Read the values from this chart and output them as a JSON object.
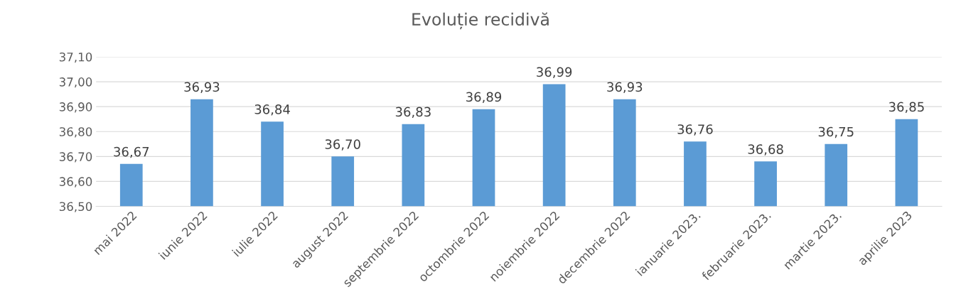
{
  "chart_data": {
    "type": "bar",
    "title": "Evoluție recidivă",
    "categories": [
      "mai 2022",
      "iunie 2022",
      "iulie 2022",
      "august 2022",
      "septembrie 2022",
      "octombrie 2022",
      "noiembrie 2022",
      "decembrie 2022",
      "ianuarie 2023.",
      "februarie 2023.",
      "martie 2023.",
      "aprilie 2023"
    ],
    "values": [
      36.67,
      36.93,
      36.84,
      36.7,
      36.83,
      36.89,
      36.99,
      36.93,
      36.76,
      36.68,
      36.75,
      36.85
    ],
    "value_labels": [
      "36,67",
      "36,93",
      "36,84",
      "36,70",
      "36,83",
      "36,89",
      "36,99",
      "36,93",
      "36,76",
      "36,68",
      "36,75",
      "36,85"
    ],
    "color": "#5b9bd5",
    "ylim": [
      36.5,
      37.1
    ],
    "yticks": [
      {
        "value": 36.5,
        "label": "36,50"
      },
      {
        "value": 36.6,
        "label": "36,60"
      },
      {
        "value": 36.7,
        "label": "36,70"
      },
      {
        "value": 36.8,
        "label": "36,80"
      },
      {
        "value": 36.9,
        "label": "36,90"
      },
      {
        "value": 37.0,
        "label": "37,00"
      },
      {
        "value": 37.1,
        "label": "37,10"
      }
    ],
    "grid": "y"
  }
}
